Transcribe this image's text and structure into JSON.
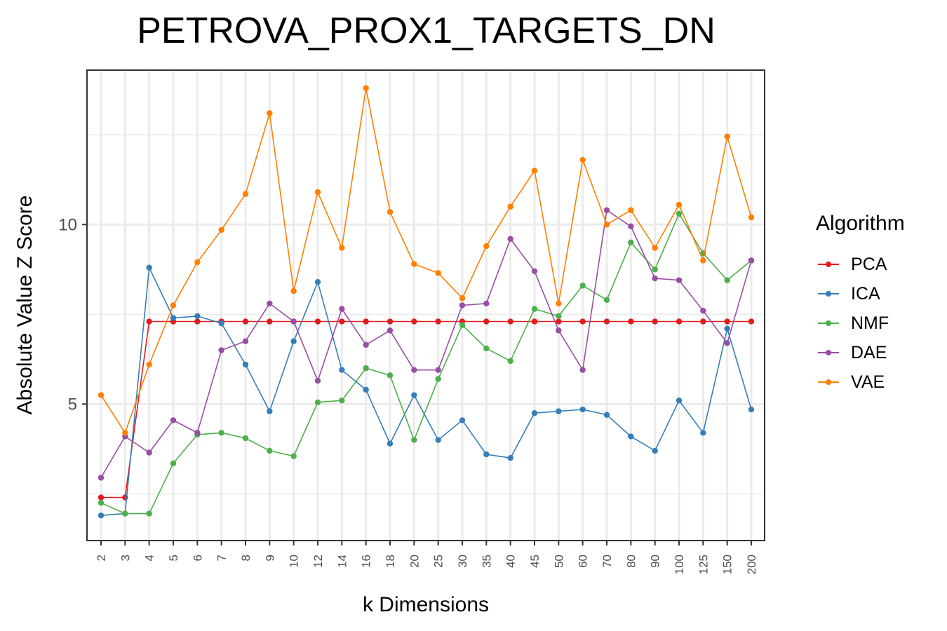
{
  "chart_data": {
    "type": "line",
    "title": "PETROVA_PROX1_TARGETS_DN",
    "xlabel": "k Dimensions",
    "ylabel": "Absolute Value Z Score",
    "legend_title": "Algorithm",
    "legend_position": "right",
    "grid": true,
    "categories": [
      "2",
      "3",
      "4",
      "5",
      "6",
      "7",
      "8",
      "9",
      "10",
      "12",
      "14",
      "16",
      "18",
      "20",
      "25",
      "30",
      "35",
      "40",
      "45",
      "50",
      "60",
      "70",
      "80",
      "90",
      "100",
      "125",
      "150",
      "200"
    ],
    "yticks": [
      5,
      10
    ],
    "ylim": [
      1.2,
      14.3
    ],
    "series": [
      {
        "name": "PCA",
        "color": "#E41A1C",
        "values": [
          2.4,
          2.4,
          7.3,
          7.3,
          7.3,
          7.3,
          7.3,
          7.3,
          7.3,
          7.3,
          7.3,
          7.3,
          7.3,
          7.3,
          7.3,
          7.3,
          7.3,
          7.3,
          7.3,
          7.3,
          7.3,
          7.3,
          7.3,
          7.3,
          7.3,
          7.3,
          7.3,
          7.3
        ]
      },
      {
        "name": "ICA",
        "color": "#377EB8",
        "values": [
          1.9,
          1.95,
          8.8,
          7.4,
          7.45,
          7.25,
          6.1,
          4.8,
          6.75,
          8.4,
          5.95,
          5.4,
          3.9,
          5.25,
          4.0,
          4.55,
          3.6,
          3.5,
          4.75,
          4.8,
          4.85,
          4.7,
          4.1,
          3.7,
          5.1,
          4.2,
          7.1,
          4.85
        ]
      },
      {
        "name": "NMF",
        "color": "#4DAF4A",
        "values": [
          2.25,
          1.95,
          1.95,
          3.35,
          4.15,
          4.2,
          4.05,
          3.7,
          3.55,
          5.05,
          5.1,
          6.0,
          5.8,
          4.0,
          5.7,
          7.2,
          6.55,
          6.2,
          7.65,
          7.45,
          8.3,
          7.9,
          9.5,
          8.75,
          10.3,
          9.2,
          8.45,
          9.0
        ]
      },
      {
        "name": "DAE",
        "color": "#984EA3",
        "values": [
          2.95,
          4.1,
          3.65,
          4.55,
          4.2,
          6.5,
          6.75,
          7.8,
          7.3,
          5.65,
          7.65,
          6.65,
          7.05,
          5.95,
          5.95,
          7.75,
          7.8,
          9.6,
          8.7,
          7.05,
          5.95,
          10.4,
          9.95,
          8.5,
          8.45,
          7.6,
          6.7,
          9.0
        ]
      },
      {
        "name": "VAE",
        "color": "#FF7F00",
        "values": [
          5.25,
          4.2,
          6.1,
          7.75,
          8.95,
          9.85,
          10.85,
          13.1,
          8.15,
          10.9,
          9.35,
          13.8,
          10.35,
          8.9,
          8.65,
          7.95,
          9.4,
          10.5,
          11.5,
          7.8,
          11.8,
          10.0,
          10.4,
          9.35,
          10.55,
          9.0,
          12.45,
          10.2
        ]
      }
    ]
  }
}
